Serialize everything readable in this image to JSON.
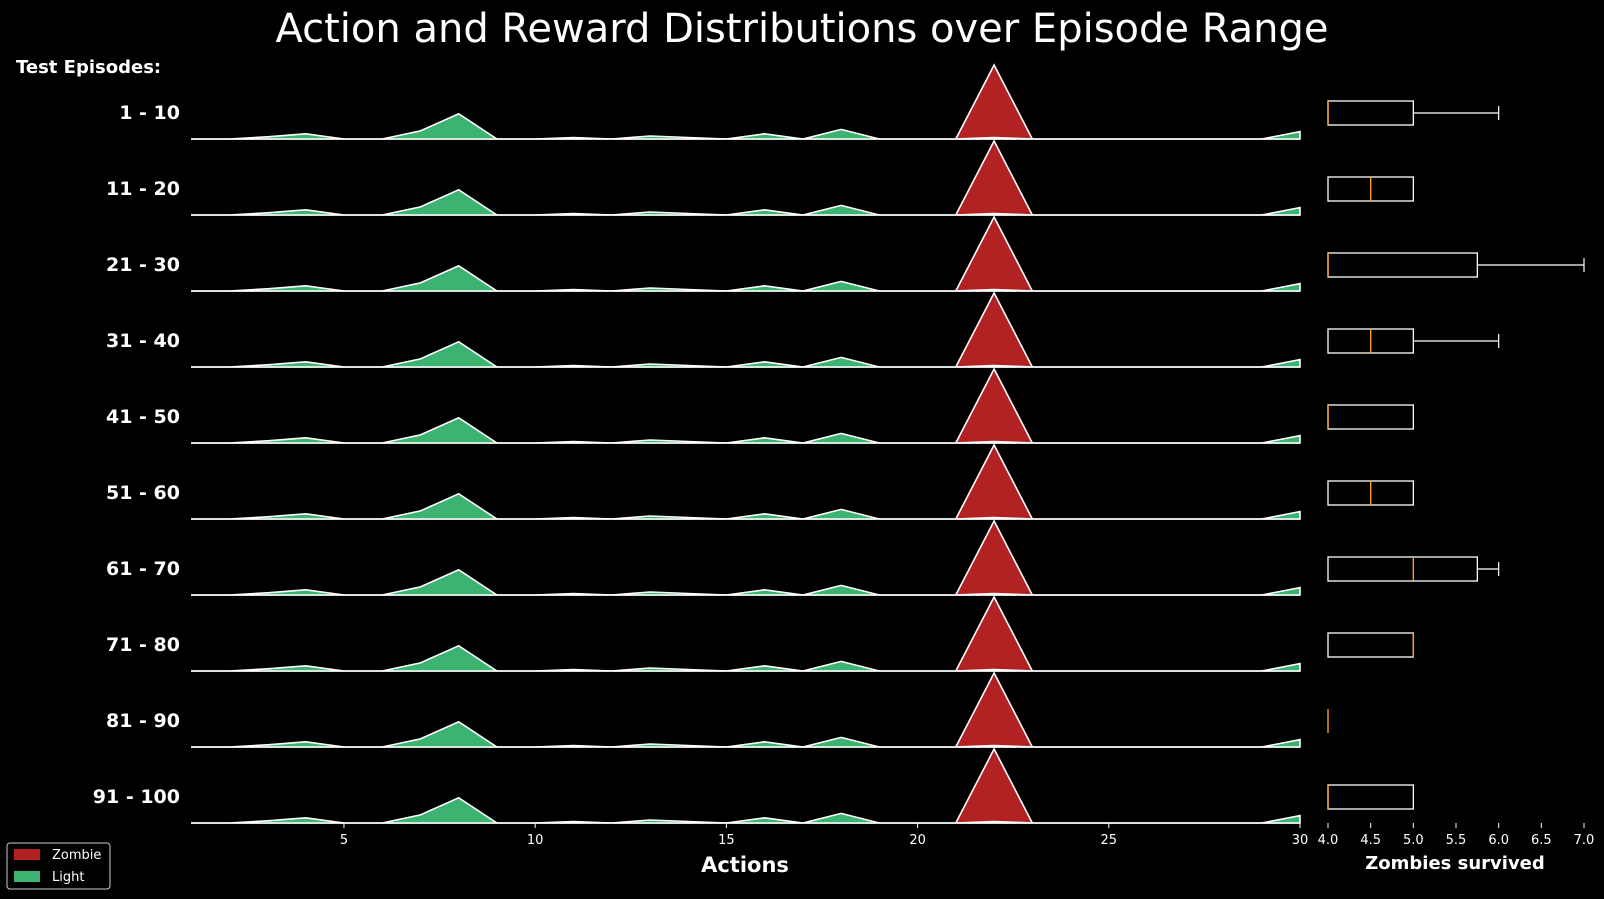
{
  "title": "Action and Reward Distributions over Episode Range",
  "row_header": "Test Episodes:",
  "legend": {
    "items": [
      {
        "label": "Zombie",
        "color": "#b22222"
      },
      {
        "label": "Light",
        "color": "#3cb371"
      }
    ]
  },
  "colors": {
    "background": "#000000",
    "zombie": "#b22222",
    "light": "#3cb371",
    "outline": "#ffffff",
    "median": "#ff9f1c"
  },
  "chart_data": [
    {
      "type": "area",
      "title": "Action and Reward Distributions over Episode Range",
      "xlabel": "Actions",
      "ylabel": "Test Episodes:",
      "xlim": [
        1,
        30
      ],
      "xticks": [
        5,
        10,
        15,
        20,
        25,
        30
      ],
      "rows": [
        "1 - 10",
        "11 - 20",
        "21 - 30",
        "31 - 40",
        "41 - 50",
        "51 - 60",
        "61 - 70",
        "71 - 80",
        "81 - 90",
        "91 - 100"
      ],
      "series": [
        {
          "name": "Light",
          "x": [
            1,
            2,
            3,
            4,
            5,
            6,
            7,
            8,
            9,
            10,
            11,
            12,
            13,
            14,
            15,
            16,
            17,
            18,
            19,
            20,
            21,
            22,
            23,
            24,
            25,
            26,
            27,
            28,
            29,
            30
          ],
          "values": [
            0,
            0,
            0.03,
            0.07,
            0,
            0,
            0.11,
            0.34,
            0,
            0,
            0.02,
            0,
            0.04,
            0.02,
            0,
            0.07,
            0,
            0.13,
            0,
            0,
            0,
            0.02,
            0,
            0,
            0,
            0,
            0,
            0,
            0,
            0.1
          ]
        },
        {
          "name": "Zombie",
          "x": [
            1,
            2,
            3,
            4,
            5,
            6,
            7,
            8,
            9,
            10,
            11,
            12,
            13,
            14,
            15,
            16,
            17,
            18,
            19,
            20,
            21,
            22,
            23,
            24,
            25,
            26,
            27,
            28,
            29,
            30
          ],
          "values": [
            0,
            0,
            0,
            0,
            0,
            0,
            0,
            0,
            0,
            0,
            0,
            0,
            0,
            0,
            0,
            0,
            0,
            0,
            0,
            0,
            0,
            1,
            0,
            0,
            0,
            0,
            0,
            0,
            0,
            0
          ]
        }
      ]
    },
    {
      "type": "box",
      "xlabel": "Zombies survived",
      "xlim": [
        4.0,
        7.0
      ],
      "xticks": [
        "4.0",
        "4.5",
        "5.0",
        "5.5",
        "6.0",
        "6.5",
        "7.0"
      ],
      "boxes": [
        {
          "row": "1 - 10",
          "q1": 4.0,
          "median": 4.0,
          "q3": 5.0,
          "whisker_low": 4.0,
          "whisker_high": 6.0
        },
        {
          "row": "11 - 20",
          "q1": 4.0,
          "median": 4.5,
          "q3": 5.0,
          "whisker_low": 4.0,
          "whisker_high": 5.0
        },
        {
          "row": "21 - 30",
          "q1": 4.0,
          "median": 4.0,
          "q3": 5.75,
          "whisker_low": 4.0,
          "whisker_high": 7.0
        },
        {
          "row": "31 - 40",
          "q1": 4.0,
          "median": 4.5,
          "q3": 5.0,
          "whisker_low": 4.0,
          "whisker_high": 6.0
        },
        {
          "row": "41 - 50",
          "q1": 4.0,
          "median": 4.0,
          "q3": 5.0,
          "whisker_low": 4.0,
          "whisker_high": 5.0
        },
        {
          "row": "51 - 60",
          "q1": 4.0,
          "median": 4.5,
          "q3": 5.0,
          "whisker_low": 4.0,
          "whisker_high": 5.0
        },
        {
          "row": "61 - 70",
          "q1": 4.0,
          "median": 5.0,
          "q3": 5.75,
          "whisker_low": 4.0,
          "whisker_high": 6.0
        },
        {
          "row": "71 - 80",
          "q1": 4.0,
          "median": 5.0,
          "q3": 5.0,
          "whisker_low": 4.0,
          "whisker_high": 5.0
        },
        {
          "row": "81 - 90",
          "q1": 4.0,
          "median": 4.0,
          "q3": 4.0,
          "whisker_low": 4.0,
          "whisker_high": 4.0
        },
        {
          "row": "91 - 100",
          "q1": 4.0,
          "median": 4.0,
          "q3": 5.0,
          "whisker_low": 4.0,
          "whisker_high": 5.0
        }
      ]
    }
  ]
}
